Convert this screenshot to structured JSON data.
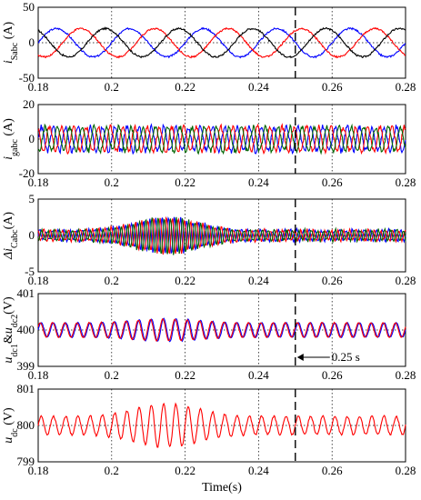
{
  "chart_data": [
    {
      "type": "line",
      "ylabel_italic": "i",
      "ylabel_sub": "Sabc",
      "ylabel_unit": " (A)",
      "xlim": [
        0.18,
        0.28
      ],
      "ylim": [
        -50,
        50
      ],
      "xticks": [
        "0.18",
        "0.2",
        "0.22",
        "0.24",
        "0.26",
        "0.28"
      ],
      "yticks": [
        "-50",
        "0",
        "50"
      ],
      "grid": true,
      "series": [
        {
          "color": "#0000ff",
          "wave": {
            "amp": 20,
            "freq": 50,
            "phase": 0,
            "noise": 2.5
          }
        },
        {
          "color": "#ff0000",
          "wave": {
            "amp": 20,
            "freq": 50,
            "phase": -2.094,
            "noise": 2.5
          }
        },
        {
          "color": "#000000",
          "wave": {
            "amp": 20,
            "freq": 50,
            "phase": 2.094,
            "noise": 2.5
          }
        }
      ]
    },
    {
      "type": "line",
      "ylabel_italic": "i",
      "ylabel_sub": "gabc",
      "ylabel_unit": " (A)",
      "xlim": [
        0.18,
        0.28
      ],
      "ylim": [
        -20,
        20
      ],
      "xticks": [
        "0.18",
        "0.2",
        "0.22",
        "0.24",
        "0.26",
        "0.28"
      ],
      "yticks": [
        "-20",
        "0",
        "20"
      ],
      "grid": true,
      "series": [
        {
          "color": "#0000ff",
          "wave": {
            "amp": 7,
            "freq": 300,
            "phase": 0,
            "noise": 3
          }
        },
        {
          "color": "#ff0000",
          "wave": {
            "amp": 7,
            "freq": 300,
            "phase": 2.1,
            "noise": 3
          }
        },
        {
          "color": "#006400",
          "wave": {
            "amp": 7,
            "freq": 300,
            "phase": 4.2,
            "noise": 3
          }
        }
      ]
    },
    {
      "type": "line",
      "ylabel_italic": "Δi",
      "ylabel_sub": "Cabc",
      "ylabel_unit": "(A)",
      "xlim": [
        0.18,
        0.28
      ],
      "ylim": [
        -5,
        5
      ],
      "xticks": [
        "0.18",
        "0.2",
        "0.22",
        "0.24",
        "0.26",
        "0.28"
      ],
      "yticks": [
        "-5",
        "0",
        "5"
      ],
      "grid": true,
      "series": [
        {
          "color": "#0000ff",
          "wave": {
            "amp": 0.7,
            "freq": 600,
            "phase": 0,
            "noise": 0.5,
            "burst": 1.8
          }
        },
        {
          "color": "#ff0000",
          "wave": {
            "amp": 0.7,
            "freq": 600,
            "phase": 2.1,
            "noise": 0.5,
            "burst": 1.8
          }
        },
        {
          "color": "#006400",
          "wave": {
            "amp": 0.7,
            "freq": 600,
            "phase": 4.2,
            "noise": 0.5,
            "burst": 1.8
          }
        }
      ]
    },
    {
      "type": "line",
      "ylabel_italic": "u",
      "ylabel_sub": "dc1",
      "ylabel_mid": "&u",
      "ylabel_sub2": "dc2",
      "ylabel_unit": "(V)",
      "xlim": [
        0.18,
        0.28
      ],
      "ylim": [
        399,
        401
      ],
      "xticks": [
        "0.18",
        "0.2",
        "0.22",
        "0.24",
        "0.26",
        "0.28"
      ],
      "yticks": [
        "399",
        "400",
        "401"
      ],
      "grid": true,
      "annotation": "0.25 s",
      "series": [
        {
          "color": "#0000ff",
          "wave": {
            "amp": 0.2,
            "freq": 300,
            "phase": 0,
            "noise": 0.02,
            "offset": 400,
            "burst": 0.12
          }
        },
        {
          "color": "#ff0000",
          "wave": {
            "amp": 0.2,
            "freq": 300,
            "phase": 0.5,
            "noise": 0.02,
            "offset": 400,
            "burst": 0.1
          }
        }
      ]
    },
    {
      "type": "line",
      "ylabel_italic": "u",
      "ylabel_sub": "dc",
      "ylabel_unit": " (V)",
      "xlim": [
        0.18,
        0.28
      ],
      "ylim": [
        799,
        801
      ],
      "xticks": [
        "0.18",
        "0.2",
        "0.22",
        "0.24",
        "0.26",
        "0.28"
      ],
      "yticks": [
        "799",
        "800",
        "801"
      ],
      "grid": true,
      "xlabel": "Time(s)",
      "series": [
        {
          "color": "#ff0000",
          "wave": {
            "amp": 0.25,
            "freq": 300,
            "phase": 0,
            "noise": 0.05,
            "offset": 800,
            "burst": 0.35
          }
        }
      ]
    }
  ]
}
